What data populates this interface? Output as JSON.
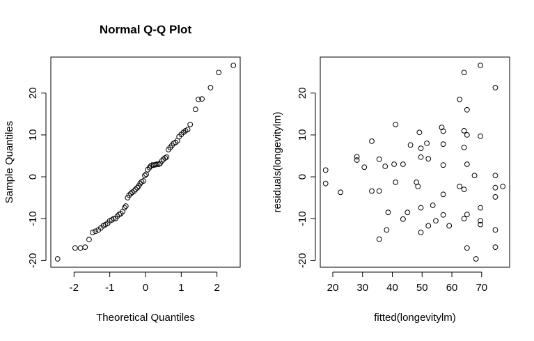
{
  "chart_data": [
    {
      "type": "scatter",
      "title": "Normal Q-Q Plot",
      "xlabel": "Theoretical Quantiles",
      "ylabel": "Sample Quantiles",
      "xlim": [
        -2.65,
        2.65
      ],
      "ylim": [
        -21.6,
        28.6
      ],
      "xticks": [
        -2,
        -1,
        0,
        1,
        2
      ],
      "yticks": [
        -20,
        -10,
        0,
        10,
        20
      ],
      "points": [
        [
          -2.46,
          -19.6
        ],
        [
          -1.97,
          -17.0
        ],
        [
          -1.82,
          -17.0
        ],
        [
          -1.69,
          -16.8
        ],
        [
          -1.58,
          -15.0
        ],
        [
          -1.48,
          -13.3
        ],
        [
          -1.4,
          -13.0
        ],
        [
          -1.32,
          -12.7
        ],
        [
          -1.25,
          -12.2
        ],
        [
          -1.18,
          -11.7
        ],
        [
          -1.12,
          -11.4
        ],
        [
          -1.06,
          -11.1
        ],
        [
          -1.0,
          -10.5
        ],
        [
          -0.94,
          -10.3
        ],
        [
          -0.89,
          -10.0
        ],
        [
          -0.84,
          -10.0
        ],
        [
          -0.79,
          -9.4
        ],
        [
          -0.74,
          -9.0
        ],
        [
          -0.69,
          -8.8
        ],
        [
          -0.64,
          -8.3
        ],
        [
          -0.59,
          -7.4
        ],
        [
          -0.55,
          -7.0
        ],
        [
          -0.5,
          -5.0
        ],
        [
          -0.46,
          -4.4
        ],
        [
          -0.41,
          -4.0
        ],
        [
          -0.37,
          -3.7
        ],
        [
          -0.32,
          -3.4
        ],
        [
          -0.28,
          -3.0
        ],
        [
          -0.23,
          -2.6
        ],
        [
          -0.19,
          -2.2
        ],
        [
          -0.15,
          -1.6
        ],
        [
          -0.11,
          -1.2
        ],
        [
          -0.06,
          -1.0
        ],
        [
          -0.02,
          0.3
        ],
        [
          0.02,
          0.6
        ],
        [
          0.06,
          1.7
        ],
        [
          0.11,
          2.2
        ],
        [
          0.15,
          2.6
        ],
        [
          0.19,
          2.8
        ],
        [
          0.23,
          2.8
        ],
        [
          0.28,
          2.9
        ],
        [
          0.32,
          3.0
        ],
        [
          0.37,
          3.0
        ],
        [
          0.41,
          3.2
        ],
        [
          0.46,
          3.8
        ],
        [
          0.5,
          4.2
        ],
        [
          0.55,
          4.5
        ],
        [
          0.59,
          4.7
        ],
        [
          0.64,
          6.5
        ],
        [
          0.69,
          7.0
        ],
        [
          0.74,
          7.5
        ],
        [
          0.79,
          8.0
        ],
        [
          0.84,
          8.2
        ],
        [
          0.89,
          8.6
        ],
        [
          0.94,
          9.6
        ],
        [
          1.0,
          10.1
        ],
        [
          1.06,
          10.6
        ],
        [
          1.12,
          11.0
        ],
        [
          1.18,
          11.3
        ],
        [
          1.25,
          12.5
        ],
        [
          1.4,
          16.1
        ],
        [
          1.48,
          18.5
        ],
        [
          1.58,
          18.6
        ],
        [
          1.82,
          21.3
        ],
        [
          2.05,
          24.9
        ],
        [
          2.46,
          26.6
        ]
      ]
    },
    {
      "type": "scatter",
      "title": "",
      "xlabel": "fitted(longevitylm)",
      "ylabel": "residuals(longevitylm)",
      "xlim": [
        15.8,
        79.4
      ],
      "ylim": [
        -21.6,
        28.6
      ],
      "xticks": [
        20,
        30,
        40,
        50,
        60,
        70
      ],
      "yticks": [
        -20,
        -10,
        0,
        10,
        20
      ],
      "points": [
        [
          17.6,
          1.6
        ],
        [
          17.6,
          -1.6
        ],
        [
          22.6,
          -3.7
        ],
        [
          28.1,
          4.8
        ],
        [
          28.1,
          4.0
        ],
        [
          30.6,
          2.3
        ],
        [
          33.1,
          8.5
        ],
        [
          33.1,
          -3.4
        ],
        [
          35.6,
          4.2
        ],
        [
          35.6,
          -14.9
        ],
        [
          35.6,
          -3.4
        ],
        [
          37.6,
          2.5
        ],
        [
          38.1,
          -12.7
        ],
        [
          38.6,
          -8.5
        ],
        [
          40.6,
          3.0
        ],
        [
          41.1,
          12.5
        ],
        [
          41.1,
          -1.3
        ],
        [
          43.6,
          3.0
        ],
        [
          43.6,
          -10.1
        ],
        [
          45.1,
          -8.5
        ],
        [
          46.1,
          7.6
        ],
        [
          48.1,
          -1.3
        ],
        [
          48.6,
          -2.3
        ],
        [
          49.1,
          10.6
        ],
        [
          49.6,
          6.8
        ],
        [
          49.6,
          4.7
        ],
        [
          49.6,
          -7.4
        ],
        [
          49.6,
          -13.3
        ],
        [
          51.6,
          8.0
        ],
        [
          52.1,
          4.3
        ],
        [
          52.1,
          -11.7
        ],
        [
          53.6,
          -6.8
        ],
        [
          54.6,
          -10.5
        ],
        [
          56.6,
          11.8
        ],
        [
          57.1,
          10.9
        ],
        [
          57.1,
          7.8
        ],
        [
          57.1,
          2.8
        ],
        [
          57.1,
          -4.2
        ],
        [
          57.1,
          -9.1
        ],
        [
          59.1,
          -11.7
        ],
        [
          62.6,
          18.5
        ],
        [
          62.6,
          -2.3
        ],
        [
          64.1,
          24.9
        ],
        [
          64.1,
          11.0
        ],
        [
          64.1,
          7.0
        ],
        [
          64.1,
          -3.0
        ],
        [
          64.1,
          -10.0
        ],
        [
          65.1,
          16.0
        ],
        [
          65.1,
          10.0
        ],
        [
          65.1,
          3.0
        ],
        [
          65.1,
          -9.0
        ],
        [
          65.1,
          -17.0
        ],
        [
          67.6,
          0.3
        ],
        [
          68.1,
          -19.6
        ],
        [
          69.6,
          26.6
        ],
        [
          69.6,
          9.7
        ],
        [
          69.6,
          -7.4
        ],
        [
          69.6,
          -10.5
        ],
        [
          69.6,
          -11.4
        ],
        [
          74.6,
          21.3
        ],
        [
          74.6,
          0.3
        ],
        [
          74.6,
          -2.6
        ],
        [
          74.6,
          -4.8
        ],
        [
          74.6,
          -12.7
        ],
        [
          74.6,
          -16.8
        ],
        [
          77.1,
          -2.3
        ]
      ]
    }
  ]
}
